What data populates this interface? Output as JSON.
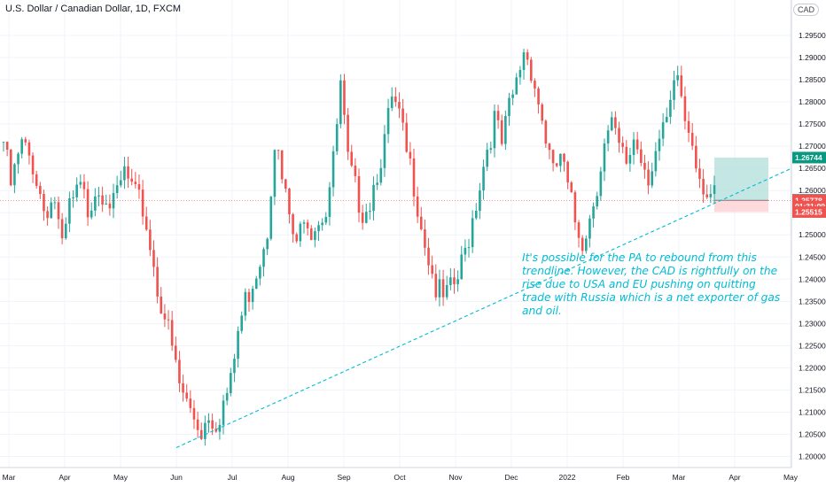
{
  "header": {
    "title": "U.S. Dollar / Canadian Dollar, 1D, FXCM",
    "currency_button": "CAD"
  },
  "annotation": "It's possible for the PA to rebound from this trendline. However, the CAD is rightfully on the rise due to USA and EU pushing on quitting trade with Russia which is a net exporter of gas and oil.",
  "colors": {
    "up": "#26a69a",
    "down": "#ef5350",
    "trendline": "#00bcd4",
    "profit_zone": "#b2dfdb",
    "loss_zone": "#ffcdd2",
    "axis_text": "#131722"
  },
  "chart_data": {
    "type": "candlestick",
    "ylim": [
      1.1975,
      1.301
    ],
    "y_ticks": [
      "1.29500",
      "1.29000",
      "1.28500",
      "1.28000",
      "1.27500",
      "1.27000",
      "1.26500",
      "1.26000",
      "1.25500",
      "1.25000",
      "1.24500",
      "1.24000",
      "1.23500",
      "1.23000",
      "1.22500",
      "1.22000",
      "1.21500",
      "1.21000",
      "1.20500",
      "1.20000"
    ],
    "x_ticks": [
      "Mar",
      "Apr",
      "May",
      "Jun",
      "Jul",
      "Aug",
      "Sep",
      "Oct",
      "Nov",
      "Dec",
      "2022",
      "Feb",
      "Mar",
      "Apr",
      "May"
    ],
    "price_tags": [
      {
        "label": "1.26744",
        "value": 1.26744,
        "color": "#089981"
      },
      {
        "label": "1.25788",
        "value": 1.25788,
        "color": "#434651"
      },
      {
        "label": "1.25778",
        "value": 1.25778,
        "color": "#ef5350"
      },
      {
        "label": "01:31:09",
        "value": 1.2564,
        "color": "#ef5350"
      },
      {
        "label": "1.25515",
        "value": 1.25515,
        "color": "#ef5350"
      }
    ],
    "position": {
      "entry": 1.25778,
      "target": 1.26744,
      "stop": 1.25515
    },
    "trendline": {
      "start": {
        "month": "Jun",
        "value": 1.202
      },
      "end": {
        "month": "Apr",
        "value": 1.265
      }
    },
    "path": [
      [
        0,
        1.271
      ],
      [
        2,
        1.261
      ],
      [
        5,
        1.27
      ],
      [
        8,
        1.266
      ],
      [
        11,
        1.256
      ],
      [
        14,
        1.258
      ],
      [
        16,
        1.246
      ],
      [
        18,
        1.256
      ],
      [
        21,
        1.26
      ],
      [
        23,
        1.256
      ],
      [
        25,
        1.261
      ],
      [
        28,
        1.26
      ],
      [
        30,
        1.256
      ],
      [
        33,
        1.264
      ],
      [
        36,
        1.258
      ],
      [
        38,
        1.256
      ],
      [
        40,
        1.248
      ],
      [
        42,
        1.238
      ],
      [
        44,
        1.232
      ],
      [
        46,
        1.224
      ],
      [
        48,
        1.216
      ],
      [
        50,
        1.212
      ],
      [
        52,
        1.209
      ],
      [
        54,
        1.206
      ],
      [
        56,
        1.21
      ],
      [
        58,
        1.208
      ],
      [
        60,
        1.212
      ],
      [
        62,
        1.216
      ],
      [
        64,
        1.228
      ],
      [
        66,
        1.235
      ],
      [
        68,
        1.24
      ],
      [
        70,
        1.245
      ],
      [
        72,
        1.252
      ],
      [
        74,
        1.272
      ],
      [
        76,
        1.262
      ],
      [
        78,
        1.254
      ],
      [
        80,
        1.246
      ],
      [
        82,
        1.256
      ],
      [
        84,
        1.252
      ],
      [
        86,
        1.254
      ],
      [
        88,
        1.256
      ],
      [
        90,
        1.266
      ],
      [
        92,
        1.283
      ],
      [
        94,
        1.266
      ],
      [
        96,
        1.26
      ],
      [
        98,
        1.256
      ],
      [
        100,
        1.258
      ],
      [
        102,
        1.265
      ],
      [
        104,
        1.271
      ],
      [
        106,
        1.28
      ],
      [
        108,
        1.276
      ],
      [
        110,
        1.268
      ],
      [
        112,
        1.262
      ],
      [
        114,
        1.253
      ],
      [
        116,
        1.245
      ],
      [
        118,
        1.238
      ],
      [
        120,
        1.235
      ],
      [
        122,
        1.237
      ],
      [
        124,
        1.24
      ],
      [
        126,
        1.246
      ],
      [
        128,
        1.254
      ],
      [
        130,
        1.262
      ],
      [
        132,
        1.27
      ],
      [
        134,
        1.276
      ],
      [
        136,
        1.27
      ],
      [
        138,
        1.278
      ],
      [
        140,
        1.284
      ],
      [
        142,
        1.292
      ],
      [
        144,
        1.288
      ],
      [
        146,
        1.28
      ],
      [
        148,
        1.272
      ],
      [
        150,
        1.263
      ],
      [
        152,
        1.268
      ],
      [
        154,
        1.26
      ],
      [
        156,
        1.253
      ],
      [
        158,
        1.249
      ],
      [
        160,
        1.254
      ],
      [
        162,
        1.262
      ],
      [
        164,
        1.27
      ],
      [
        166,
        1.274
      ],
      [
        168,
        1.269
      ],
      [
        170,
        1.266
      ],
      [
        172,
        1.272
      ],
      [
        174,
        1.268
      ],
      [
        176,
        1.264
      ],
      [
        178,
        1.269
      ],
      [
        180,
        1.272
      ],
      [
        182,
        1.278
      ],
      [
        184,
        1.286
      ],
      [
        186,
        1.276
      ],
      [
        188,
        1.272
      ],
      [
        190,
        1.264
      ],
      [
        192,
        1.26
      ],
      [
        194,
        1.2578
      ]
    ],
    "note": ""
  }
}
